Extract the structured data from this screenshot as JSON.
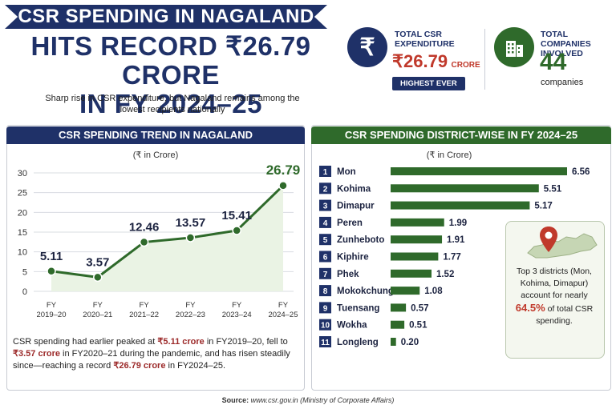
{
  "header": {
    "banner": "CSR SPENDING IN NAGALAND",
    "headline_line1": "HITS RECORD ₹26.79 CRORE",
    "headline_line2": "IN FY 2024–25",
    "subtitle": "Sharp rise in CSR expenditure, but Nagaland remains among the lowest recipients nationally"
  },
  "stats": {
    "expenditure": {
      "icon": "rupee-icon",
      "label_line1": "TOTAL CSR",
      "label_line2": "EXPENDITURE",
      "value": "₹26.79",
      "unit": "CRORE",
      "badge": "HIGHEST EVER"
    },
    "companies": {
      "icon": "building-icon",
      "label_line1": "TOTAL COMPANIES",
      "label_line2": "INVOLVED",
      "value": "44",
      "unit": "companies"
    }
  },
  "colors": {
    "navy": "#1f3168",
    "green": "#2f6a2b",
    "accent_red": "#c0392b",
    "bar_green": "#2f6a2b",
    "fill_green": "#eaf3e4"
  },
  "trend_panel": {
    "title": "CSR SPENDING TREND IN NAGALAND",
    "unit": "(₹ in Crore)",
    "note": {
      "p1": "CSR spending had earlier peaked at ",
      "b1": "₹5.11 crore",
      "p2": " in FY2019–20, fell to ",
      "b2": "₹3.57 crore",
      "p3": " in FY2020–21 during the pandemic, and has risen steadily since—reaching a record ",
      "b3": "₹26.79 crore",
      "p4": " in FY2024–25."
    }
  },
  "district_panel": {
    "title": "CSR SPENDING DISTRICT-WISE IN FY 2024–25",
    "unit": "(₹ in Crore)",
    "callout": {
      "icon": "map-pin-icon",
      "text1": "Top 3 districts (Mon, Kohima, Dimapur) account for nearly ",
      "highlight": "64.5%",
      "text2": " of total CSR spending."
    }
  },
  "source": {
    "label": "Source:",
    "text": "www.csr.gov.in (Ministry of Corporate Affairs)"
  },
  "chart_data": [
    {
      "type": "line",
      "title": "CSR SPENDING TREND IN NAGALAND",
      "ylabel": "(₹ in Crore)",
      "x": [
        "FY 2019–20",
        "FY 2020–21",
        "FY 2021–22",
        "FY 2022–23",
        "FY 2023–24",
        "FY 2024–25"
      ],
      "x_line1": [
        "FY",
        "FY",
        "FY",
        "FY",
        "FY",
        "FY"
      ],
      "x_line2": [
        "2019–20",
        "2020–21",
        "2021–22",
        "2022–23",
        "2023–24",
        "2024–25"
      ],
      "values": [
        5.11,
        3.57,
        12.46,
        13.57,
        15.41,
        26.79
      ],
      "labels": [
        "5.11",
        "3.57",
        "12.46",
        "13.57",
        "15.41",
        "26.79"
      ],
      "ylim": [
        0,
        30
      ],
      "yticks": [
        "0",
        "5",
        "10",
        "15",
        "20",
        "25",
        "30"
      ],
      "grid": true
    },
    {
      "type": "bar",
      "title": "CSR SPENDING DISTRICT-WISE IN FY 2024–25",
      "ylabel": "(₹ in Crore)",
      "ranks": [
        "1",
        "2",
        "3",
        "4",
        "5",
        "6",
        "7",
        "8",
        "9",
        "10",
        "11"
      ],
      "categories": [
        "Mon",
        "Kohima",
        "Dimapur",
        "Peren",
        "Zunheboto",
        "Kiphire",
        "Phek",
        "Mokokchung",
        "Tuensang",
        "Wokha",
        "Longleng"
      ],
      "values": [
        6.56,
        5.51,
        5.17,
        1.99,
        1.91,
        1.77,
        1.52,
        1.08,
        0.57,
        0.51,
        0.2
      ],
      "labels": [
        "6.56",
        "5.51",
        "5.17",
        "1.99",
        "1.91",
        "1.77",
        "1.52",
        "1.08",
        "0.57",
        "0.51",
        "0.20"
      ],
      "xlim": [
        0,
        6.56
      ]
    }
  ]
}
